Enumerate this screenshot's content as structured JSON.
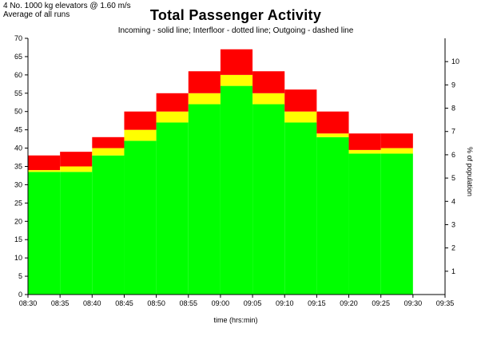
{
  "header": {
    "line1": "4 No. 1000 kg elevators @ 1.60 m/s",
    "line2": "Average of all runs"
  },
  "chart_data": {
    "type": "bar",
    "title": "Total Passenger Activity",
    "subtitle": "Incoming - solid line;  Interfloor - dotted line;  Outgoing - dashed line",
    "xlabel": "time (hrs:min)",
    "ylabel_left": "",
    "ylabel_right": "% of population",
    "stacked": true,
    "bin_start": [
      "08:30",
      "08:35",
      "08:40",
      "08:45",
      "08:50",
      "08:55",
      "09:00",
      "09:05",
      "09:10",
      "09:15",
      "09:20",
      "09:25"
    ],
    "x_ticks": [
      "08:30",
      "08:35",
      "08:40",
      "08:45",
      "08:50",
      "08:55",
      "09:00",
      "09:05",
      "09:10",
      "09:15",
      "09:20",
      "09:25",
      "09:30",
      "09:35"
    ],
    "ylim": [
      0,
      70
    ],
    "y_ticks": [
      0,
      5,
      10,
      15,
      20,
      25,
      30,
      35,
      40,
      45,
      50,
      55,
      60,
      65,
      70
    ],
    "y2lim": [
      0,
      11
    ],
    "y2_ticks": [
      1,
      2,
      3,
      4,
      5,
      6,
      7,
      8,
      9,
      10
    ],
    "series": [
      {
        "name": "Incoming",
        "color": "#00ff00",
        "values": [
          33.5,
          33.5,
          38,
          42,
          47,
          52,
          57,
          52,
          47,
          43,
          38.5,
          38.5
        ]
      },
      {
        "name": "Interfloor",
        "color": "#ffff00",
        "values": [
          0.5,
          1.5,
          2,
          3,
          3,
          3,
          3,
          3,
          3,
          1,
          1,
          1.5
        ]
      },
      {
        "name": "Outgoing",
        "color": "#ff0000",
        "values": [
          4,
          4,
          3,
          5,
          5,
          6,
          7,
          6,
          6,
          6,
          4.5,
          4
        ]
      }
    ],
    "grid": false
  }
}
